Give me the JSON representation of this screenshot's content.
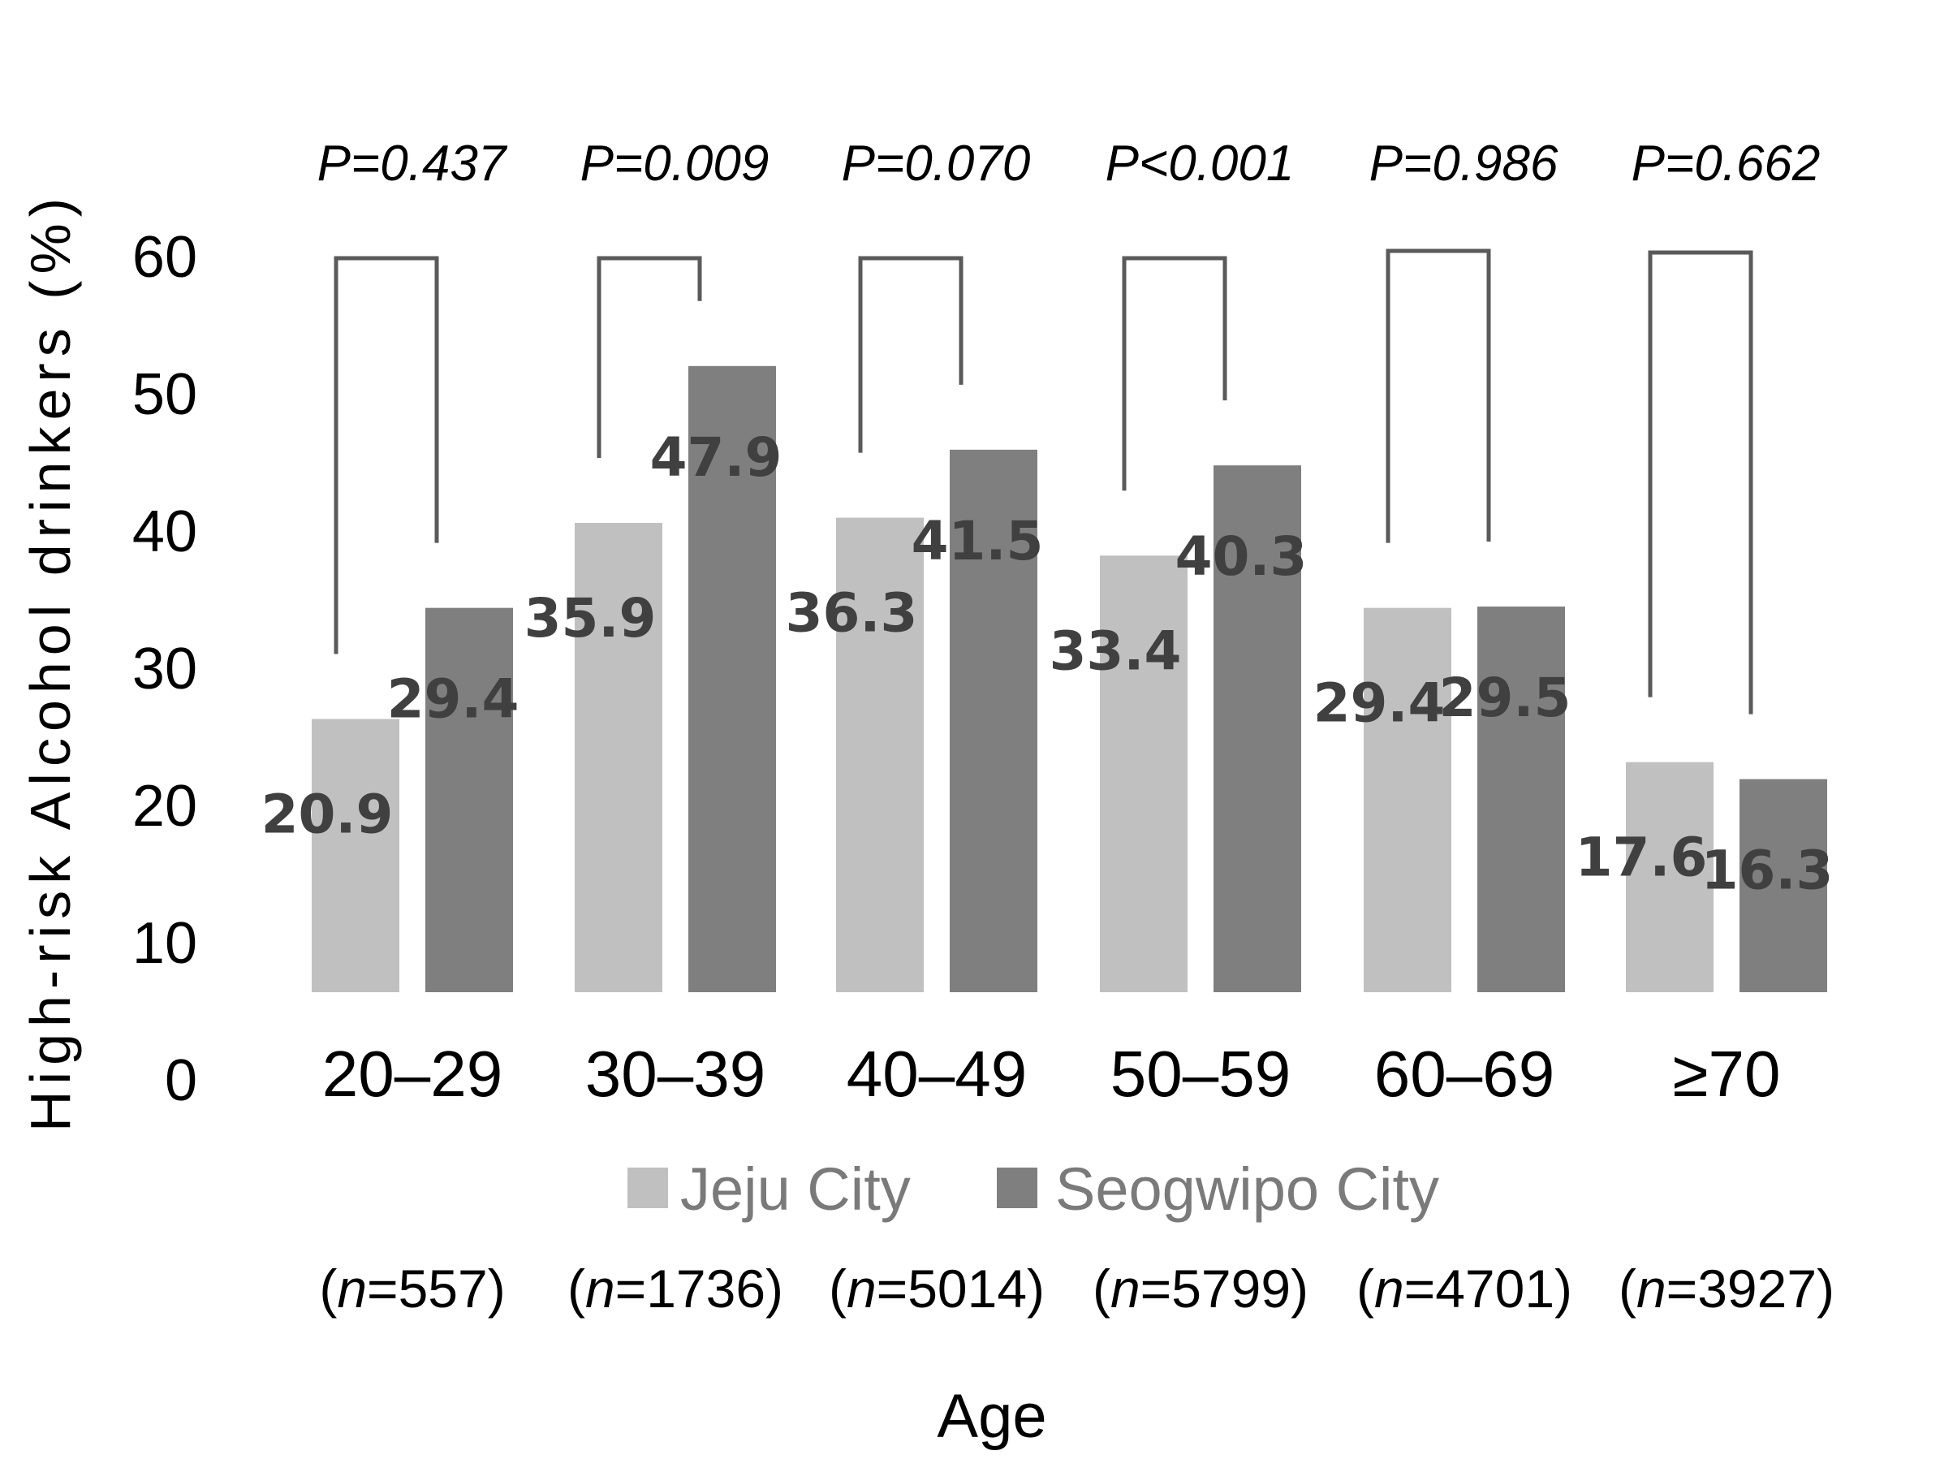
{
  "chart_data": {
    "type": "bar",
    "title": "",
    "ylabel": "High-risk Alcohol drinkers (%)",
    "xlabel": "Age",
    "ylim": [
      0,
      60
    ],
    "yticks": [
      "0",
      "10",
      "20",
      "30",
      "40",
      "50",
      "60"
    ],
    "categories": [
      "20–29",
      "30–39",
      "40–49",
      "50–59",
      "60–69",
      "≥70"
    ],
    "n_labels": [
      {
        "open": "(",
        "n": "n",
        "rest": "=557)"
      },
      {
        "open": "(",
        "n": "n",
        "rest": "=1736)"
      },
      {
        "open": "(",
        "n": "n",
        "rest": "=5014)"
      },
      {
        "open": "(",
        "n": "n",
        "rest": "=5799)"
      },
      {
        "open": "(",
        "n": "n",
        "rest": "=4701)"
      },
      {
        "open": "(",
        "n": "n",
        "rest": "=3927)"
      }
    ],
    "p_values": [
      "P=0.437",
      "P=0.009",
      "P=0.070",
      "P<0.001",
      "P=0.986",
      "P=0.662"
    ],
    "series": [
      {
        "name": "Jeju City",
        "color": "#c0c0c0",
        "values": [
          20.9,
          35.9,
          36.3,
          33.4,
          29.4,
          17.6
        ]
      },
      {
        "name": "Seogwipo City",
        "color": "#7f7f7f",
        "values": [
          29.4,
          47.9,
          41.5,
          40.3,
          29.5,
          16.3
        ]
      }
    ],
    "bracket_color": "#5a5a5a",
    "label_color": "#404040"
  }
}
